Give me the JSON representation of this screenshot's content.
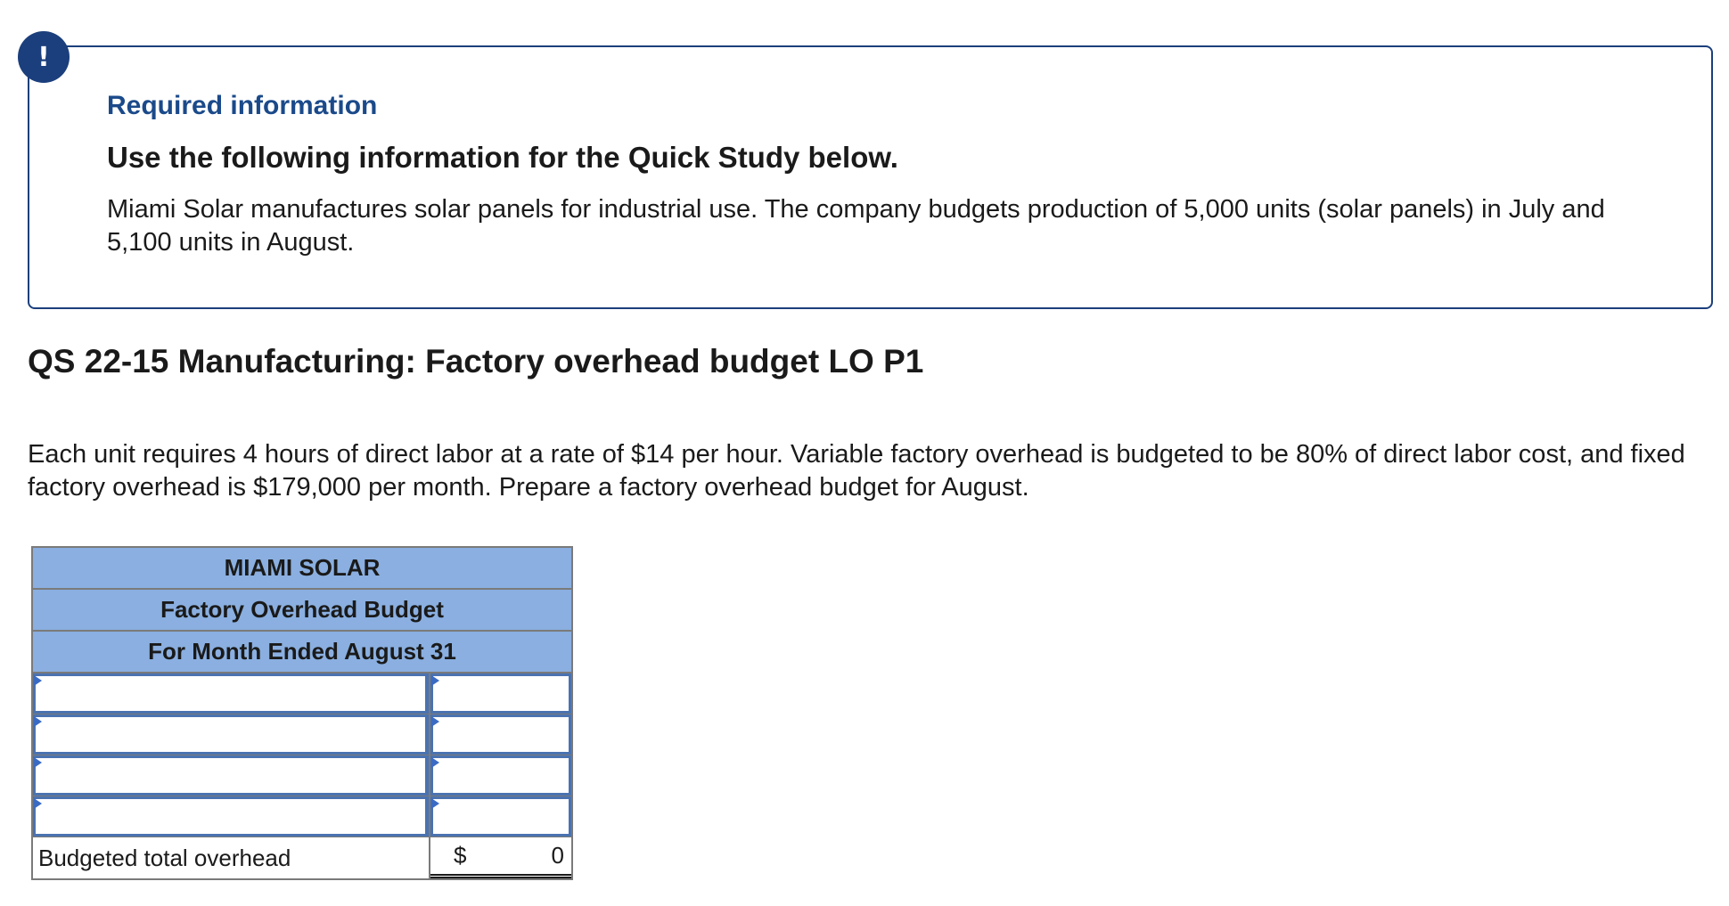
{
  "alert": {
    "icon": "exclamation-icon",
    "symbol": "!"
  },
  "info": {
    "heading": "Required information",
    "subheading": "Use the following information for the Quick Study below.",
    "body": "Miami Solar manufactures solar panels for industrial use. The company budgets production of 5,000 units (solar panels) in July and 5,100 units in August."
  },
  "question": {
    "title": "QS 22-15 Manufacturing: Factory overhead budget LO P1",
    "body": "Each unit requires 4 hours of direct labor at a rate of $14 per hour. Variable factory overhead is budgeted to be 80% of direct labor cost, and fixed factory overhead is $179,000 per month. Prepare a factory overhead budget for August."
  },
  "budget": {
    "company": "MIAMI SOLAR",
    "title": "Factory Overhead Budget",
    "period": "For Month Ended August 31",
    "rows": [
      {
        "label_value": "",
        "amount_value": ""
      },
      {
        "label_value": "",
        "amount_value": ""
      },
      {
        "label_value": "",
        "amount_value": ""
      },
      {
        "label_value": "",
        "amount_value": ""
      }
    ],
    "total": {
      "label": "Budgeted total overhead",
      "currency": "$",
      "value": "0"
    }
  },
  "colors": {
    "accent": "#1b3f7c",
    "header_fill": "#8aafe0",
    "input_border": "#4a72b0"
  }
}
